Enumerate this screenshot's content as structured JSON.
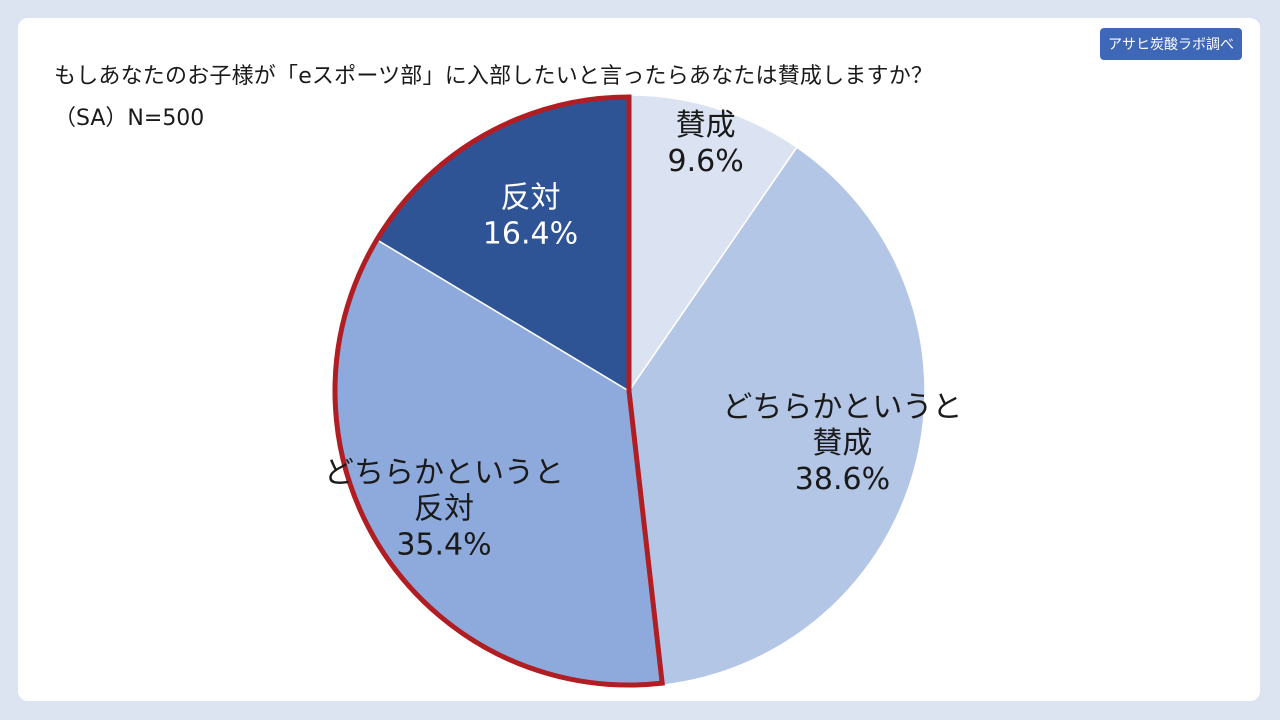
{
  "header": {
    "title": "もしあなたのお子様が「eスポーツ部」に入部したいと言ったらあなたは賛成しますか？",
    "subtitle": "（SA）N=500",
    "source": "アサヒ炭酸ラボ調べ"
  },
  "colors": {
    "background": "#dde4f1",
    "card": "#ffffff",
    "badge": "#3f67b8",
    "highlight_outline": "#b01e23"
  },
  "chart_data": {
    "type": "pie",
    "start": "12 o'clock",
    "direction": "clockwise",
    "highlighted_group": "反対 + どちらかというと反対",
    "slices": [
      {
        "label": "賛成",
        "label_lines": [
          "賛成"
        ],
        "value": 9.6,
        "value_label": "9.6%",
        "color": "#dbe3f2",
        "text_color": "#1a1a1a"
      },
      {
        "label": "どちらかというと賛成",
        "label_lines": [
          "どちらかというと",
          "賛成"
        ],
        "value": 38.6,
        "value_label": "38.6%",
        "color": "#b4c6e6",
        "text_color": "#1a1a1a"
      },
      {
        "label": "どちらかというと反対",
        "label_lines": [
          "どちらかというと",
          "反対"
        ],
        "value": 35.4,
        "value_label": "35.4%",
        "color": "#8eaadc",
        "text_color": "#1a1a1a"
      },
      {
        "label": "反対",
        "label_lines": [
          "反対"
        ],
        "value": 16.4,
        "value_label": "16.4%",
        "color": "#2f5496",
        "text_color": "#ffffff"
      }
    ]
  }
}
